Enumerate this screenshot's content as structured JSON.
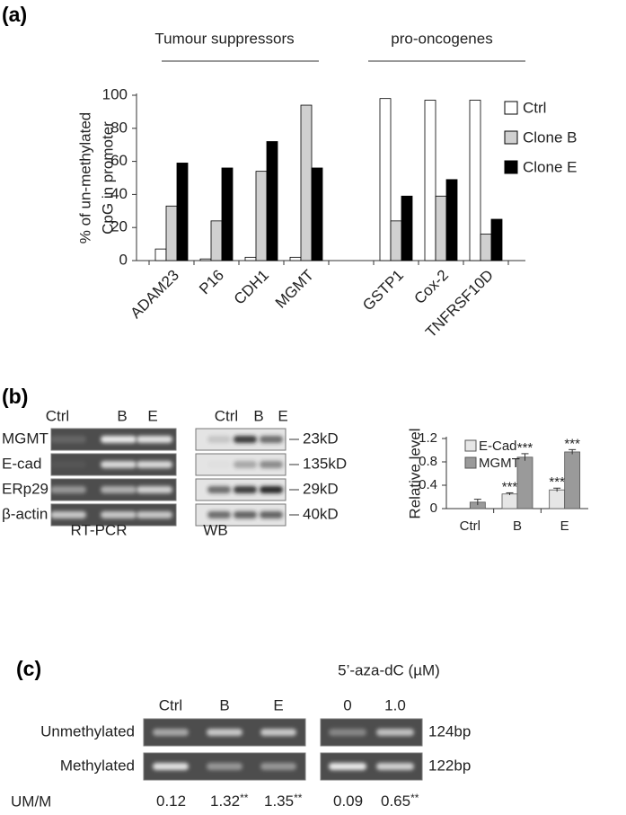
{
  "panel_labels": [
    "(a)",
    "(b)",
    "(c)"
  ],
  "chart_data": [
    {
      "type": "bar",
      "group_labels": [
        "Tumour  suppressors",
        "pro-oncogenes"
      ],
      "ylabel": [
        "% of un-methylated",
        "CpG  in promoter"
      ],
      "categories": [
        "ADAM23",
        "P16",
        "CDH1",
        "MGMT",
        null,
        "GSTP1",
        "Cox-2",
        "TNFRSF10D"
      ],
      "series": [
        {
          "name": "Ctrl",
          "color": "#ffffff",
          "values": [
            7,
            1,
            2,
            2,
            null,
            98,
            97,
            97
          ]
        },
        {
          "name": "Clone B",
          "color": "#d0d0d0",
          "values": [
            33,
            24,
            54,
            94,
            null,
            24,
            39,
            16
          ]
        },
        {
          "name": "Clone E",
          "color": "#000000",
          "values": [
            59,
            56,
            72,
            56,
            null,
            39,
            49,
            25
          ]
        }
      ],
      "ylim": [
        0,
        100
      ],
      "yticks": [
        0,
        20,
        40,
        60,
        80,
        100
      ],
      "legend": "right"
    },
    {
      "type": "bar",
      "ylabel": "Relative level",
      "categories": [
        "Ctrl",
        "B",
        "E"
      ],
      "series": [
        {
          "name": "E-Cad",
          "color": "#e6e6e6",
          "values": [
            0,
            0.25,
            0.32
          ],
          "errors": [
            0,
            0.02,
            0.03
          ],
          "significance": [
            null,
            "***",
            "***"
          ]
        },
        {
          "name": "MGMT",
          "color": "#9a9a9a",
          "values": [
            0.11,
            0.88,
            0.97
          ],
          "errors": [
            0.05,
            0.06,
            0.04
          ],
          "significance": [
            null,
            "***",
            "***"
          ]
        }
      ],
      "ylim": [
        0,
        1.2
      ],
      "yticks": [
        0,
        0.4,
        0.8,
        1.2
      ],
      "legend": "upper left"
    }
  ],
  "gels": {
    "rt_pcr": {
      "lanes": [
        "Ctrl",
        "B",
        "E"
      ],
      "rows": [
        "MGMT",
        "E-cad",
        "ERp29",
        "β-actin"
      ],
      "caption": "RT-PCR"
    },
    "wb": {
      "lanes": [
        "Ctrl",
        "B",
        "E"
      ],
      "sizes": [
        "23kD",
        "135kD",
        "29kD",
        "40kD"
      ],
      "caption": "WB"
    },
    "msp": {
      "treatment": "5’-aza-dC (µM)",
      "lanes": [
        "Ctrl",
        "B",
        "E",
        "0",
        "1.0"
      ],
      "rows": [
        "Unmethylated",
        "Methylated"
      ],
      "sizes": [
        "124bp",
        "122bp"
      ],
      "ratio_label": "UM/M",
      "ratios": [
        0.12,
        1.32,
        1.35,
        0.09,
        0.65
      ],
      "ratio_significance": [
        null,
        "**",
        "**",
        null,
        "**"
      ]
    }
  }
}
